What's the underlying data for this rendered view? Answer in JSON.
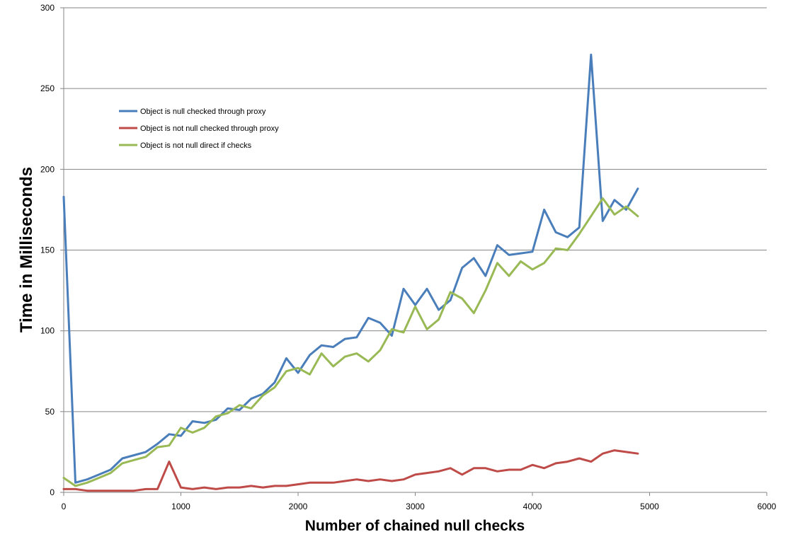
{
  "chart_data": {
    "type": "line",
    "title": "",
    "xlabel": "Number of chained null checks",
    "ylabel": "Time in Milliseconds",
    "xlim": [
      0,
      6000
    ],
    "ylim": [
      0,
      300
    ],
    "x_ticks": [
      0,
      1000,
      2000,
      3000,
      4000,
      5000,
      6000
    ],
    "y_ticks": [
      0,
      50,
      100,
      150,
      200,
      250,
      300
    ],
    "grid": "horizontal",
    "legend_position": "top-left",
    "x": [
      0,
      100,
      200,
      300,
      400,
      500,
      600,
      700,
      800,
      900,
      1000,
      1100,
      1200,
      1300,
      1400,
      1500,
      1600,
      1700,
      1800,
      1900,
      2000,
      2100,
      2200,
      2300,
      2400,
      2500,
      2600,
      2700,
      2800,
      2900,
      3000,
      3100,
      3200,
      3300,
      3400,
      3500,
      3600,
      3700,
      3800,
      3900,
      4000,
      4100,
      4200,
      4300,
      4400,
      4500,
      4600,
      4700,
      4800,
      4900
    ],
    "series": [
      {
        "name": "Object is null checked through proxy",
        "color": "#4a7ebb",
        "values": [
          183,
          6,
          8,
          11,
          14,
          21,
          23,
          25,
          30,
          36,
          35,
          44,
          43,
          45,
          52,
          51,
          58,
          61,
          68,
          83,
          74,
          85,
          91,
          90,
          95,
          96,
          108,
          105,
          97,
          126,
          116,
          126,
          113,
          119,
          139,
          145,
          134,
          153,
          147,
          148,
          149,
          175,
          161,
          158,
          164,
          271,
          168,
          181,
          175,
          188
        ]
      },
      {
        "name": "Object is not null checked through proxy",
        "color": "#be4b48",
        "values": [
          2,
          2,
          1,
          1,
          1,
          1,
          1,
          2,
          2,
          19,
          3,
          2,
          3,
          2,
          3,
          3,
          4,
          3,
          4,
          4,
          5,
          6,
          6,
          6,
          7,
          8,
          7,
          8,
          7,
          8,
          11,
          12,
          13,
          15,
          11,
          15,
          15,
          13,
          14,
          14,
          17,
          15,
          18,
          19,
          21,
          19,
          24,
          26,
          25,
          24
        ]
      },
      {
        "name": "Object is not null direct if checks",
        "color": "#98b954",
        "values": [
          9,
          4,
          6,
          9,
          12,
          18,
          20,
          22,
          28,
          29,
          40,
          37,
          40,
          47,
          49,
          54,
          52,
          60,
          65,
          75,
          77,
          73,
          86,
          78,
          84,
          86,
          81,
          88,
          101,
          99,
          115,
          101,
          107,
          124,
          120,
          111,
          125,
          142,
          134,
          143,
          138,
          142,
          151,
          150,
          160,
          171,
          182,
          172,
          177,
          171
        ]
      }
    ]
  }
}
